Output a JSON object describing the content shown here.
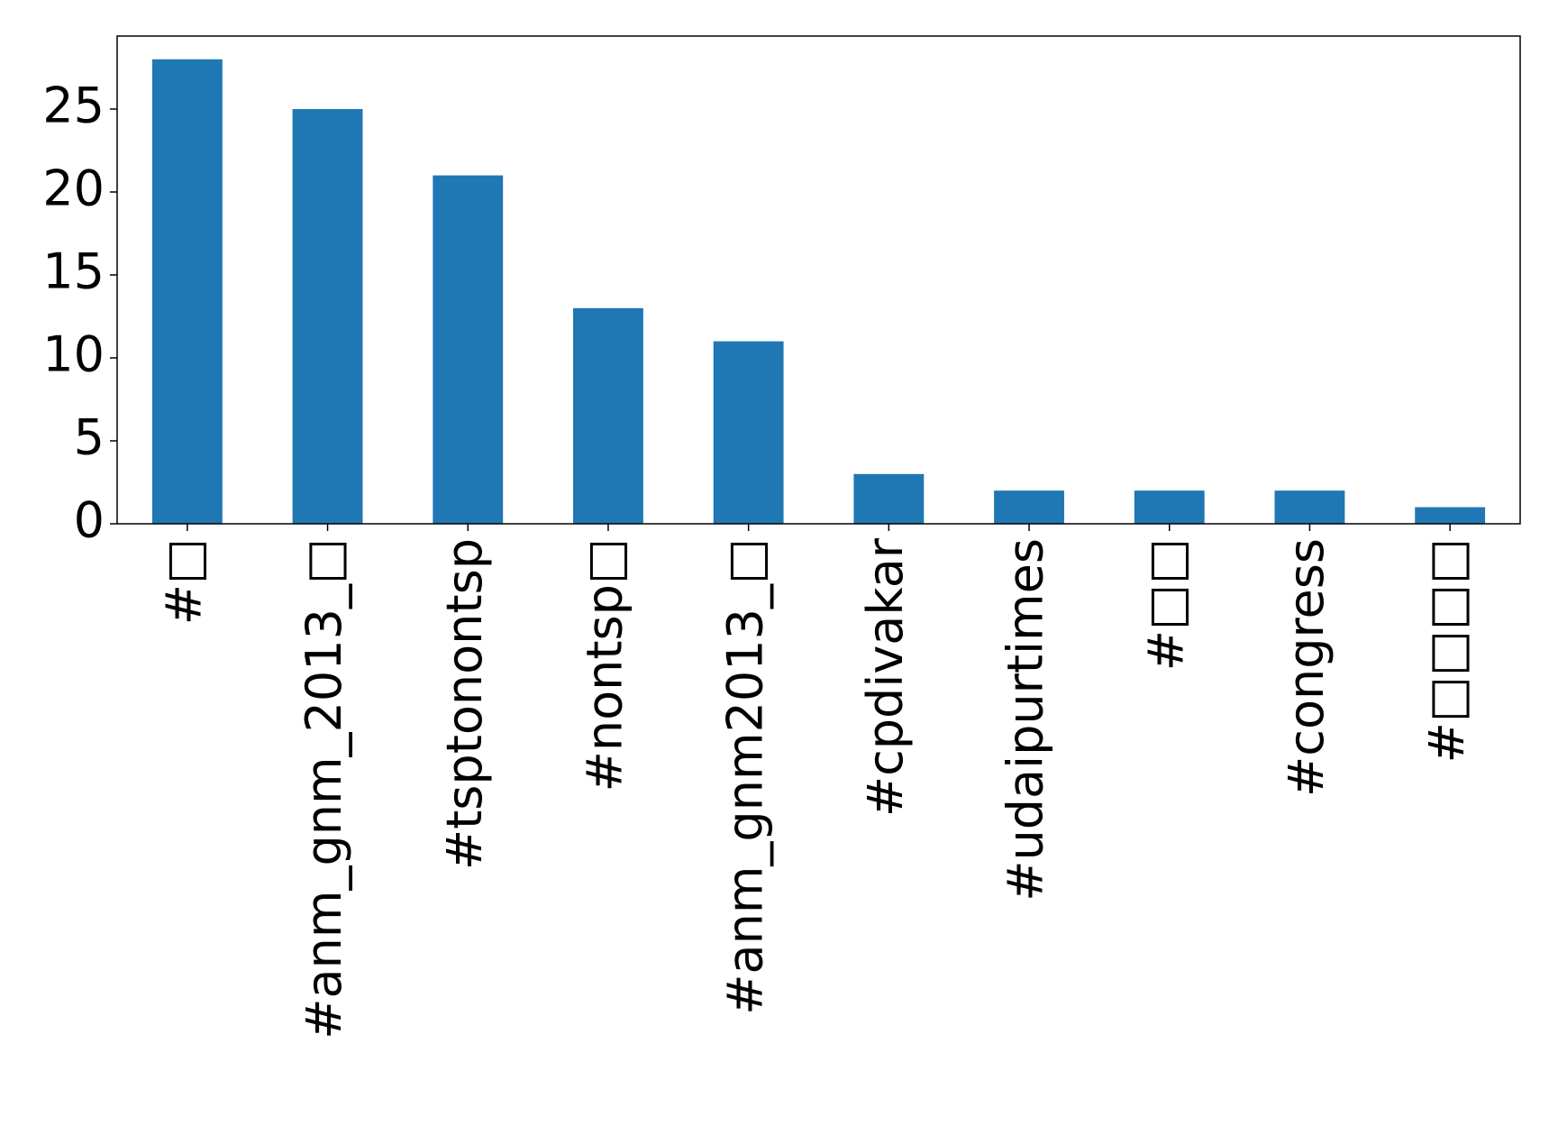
{
  "chart_data": {
    "type": "bar",
    "categories": [
      "#□",
      "#anm_gnm_2013_□",
      "#tsptonontsp",
      "#nontsp□",
      "#anm_gnm2013_□",
      "#cpdivakar",
      "#udaipurtimes",
      "#□□",
      "#congress",
      "#□□□□"
    ],
    "values": [
      28,
      25,
      21,
      13,
      11,
      3,
      2,
      2,
      2,
      1
    ],
    "color": "#1f77b4",
    "ylim": [
      0,
      29.4
    ],
    "yticks": [
      0,
      5,
      10,
      15,
      20,
      25
    ],
    "grid": false
  }
}
